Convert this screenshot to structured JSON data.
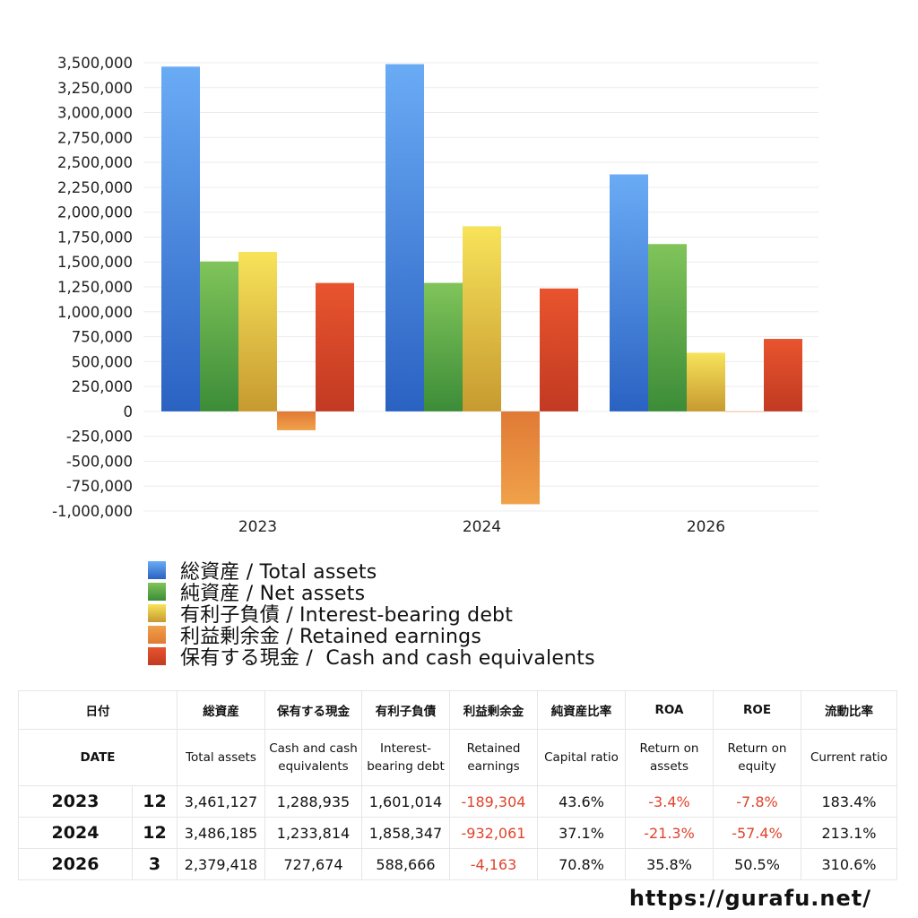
{
  "chart_data": {
    "type": "bar",
    "categories": [
      "2023",
      "2024",
      "2026"
    ],
    "ylim": [
      -1000000,
      3500000
    ],
    "ytick_step": 250000,
    "ytick_labels": [
      "3,500,000",
      "3,250,000",
      "3,000,000",
      "2,750,000",
      "2,500,000",
      "2,250,000",
      "2,000,000",
      "1,750,000",
      "1,500,000",
      "1,250,000",
      "1,000,000",
      "750,000",
      "500,000",
      "250,000",
      "0",
      "-250,000",
      "-500,000",
      "-750,000",
      "-1,000,000"
    ],
    "grid": true,
    "legend_position": "bottom",
    "series": [
      {
        "name": "総資産 / Total assets",
        "values": [
          3461127,
          3486185,
          2379418
        ],
        "color_top": "#6aabf5",
        "color_bottom": "#2a62c2"
      },
      {
        "name": "純資産 / Net assets",
        "values": [
          1505000,
          1290000,
          1680000
        ],
        "color_top": "#80c45a",
        "color_bottom": "#3c8c38"
      },
      {
        "name": "有利子負債 / Interest-bearing debt",
        "values": [
          1601014,
          1858347,
          588666
        ],
        "color_top": "#f7e35a",
        "color_bottom": "#c79a30"
      },
      {
        "name": "利益剰余金 / Retained earnings",
        "values": [
          -189304,
          -932061,
          -4163
        ],
        "color_top": "#e07a35",
        "color_bottom": "#f0a14a"
      },
      {
        "name": "保有する現金 /  Cash and cash equivalents",
        "values": [
          1288935,
          1233814,
          727674
        ],
        "color_top": "#e8542e",
        "color_bottom": "#c13a22"
      }
    ]
  },
  "table": {
    "header_jp": [
      "日付",
      "総資産",
      "保有する現金",
      "有利子負債",
      "利益剰余金",
      "純資産比率",
      "ROA",
      "ROE",
      "流動比率"
    ],
    "header_en": [
      "DATE",
      "Total assets",
      "Cash and cash equivalents",
      "Interest-bearing debt",
      "Retained earnings",
      "Capital ratio",
      "Return on assets",
      "Return on equity",
      "Current ratio"
    ],
    "rows": [
      {
        "year": "2023",
        "month": "12",
        "total_assets": "3,461,127",
        "cash": "1,288,935",
        "debt": "1,601,014",
        "retained": "-189,304",
        "capital_ratio": "43.6%",
        "roa": "-3.4%",
        "roe": "-7.8%",
        "current_ratio": "183.4%"
      },
      {
        "year": "2024",
        "month": "12",
        "total_assets": "3,486,185",
        "cash": "1,233,814",
        "debt": "1,858,347",
        "retained": "-932,061",
        "capital_ratio": "37.1%",
        "roa": "-21.3%",
        "roe": "-57.4%",
        "current_ratio": "213.1%"
      },
      {
        "year": "2026",
        "month": "3",
        "total_assets": "2,379,418",
        "cash": "727,674",
        "debt": "588,666",
        "retained": "-4,163",
        "capital_ratio": "70.8%",
        "roa": "35.8%",
        "roe": "50.5%",
        "current_ratio": "310.6%"
      }
    ]
  },
  "colors": {
    "negative_text": "#e0432b",
    "grid": "#ececec"
  },
  "watermark": "https://gurafu.net/"
}
